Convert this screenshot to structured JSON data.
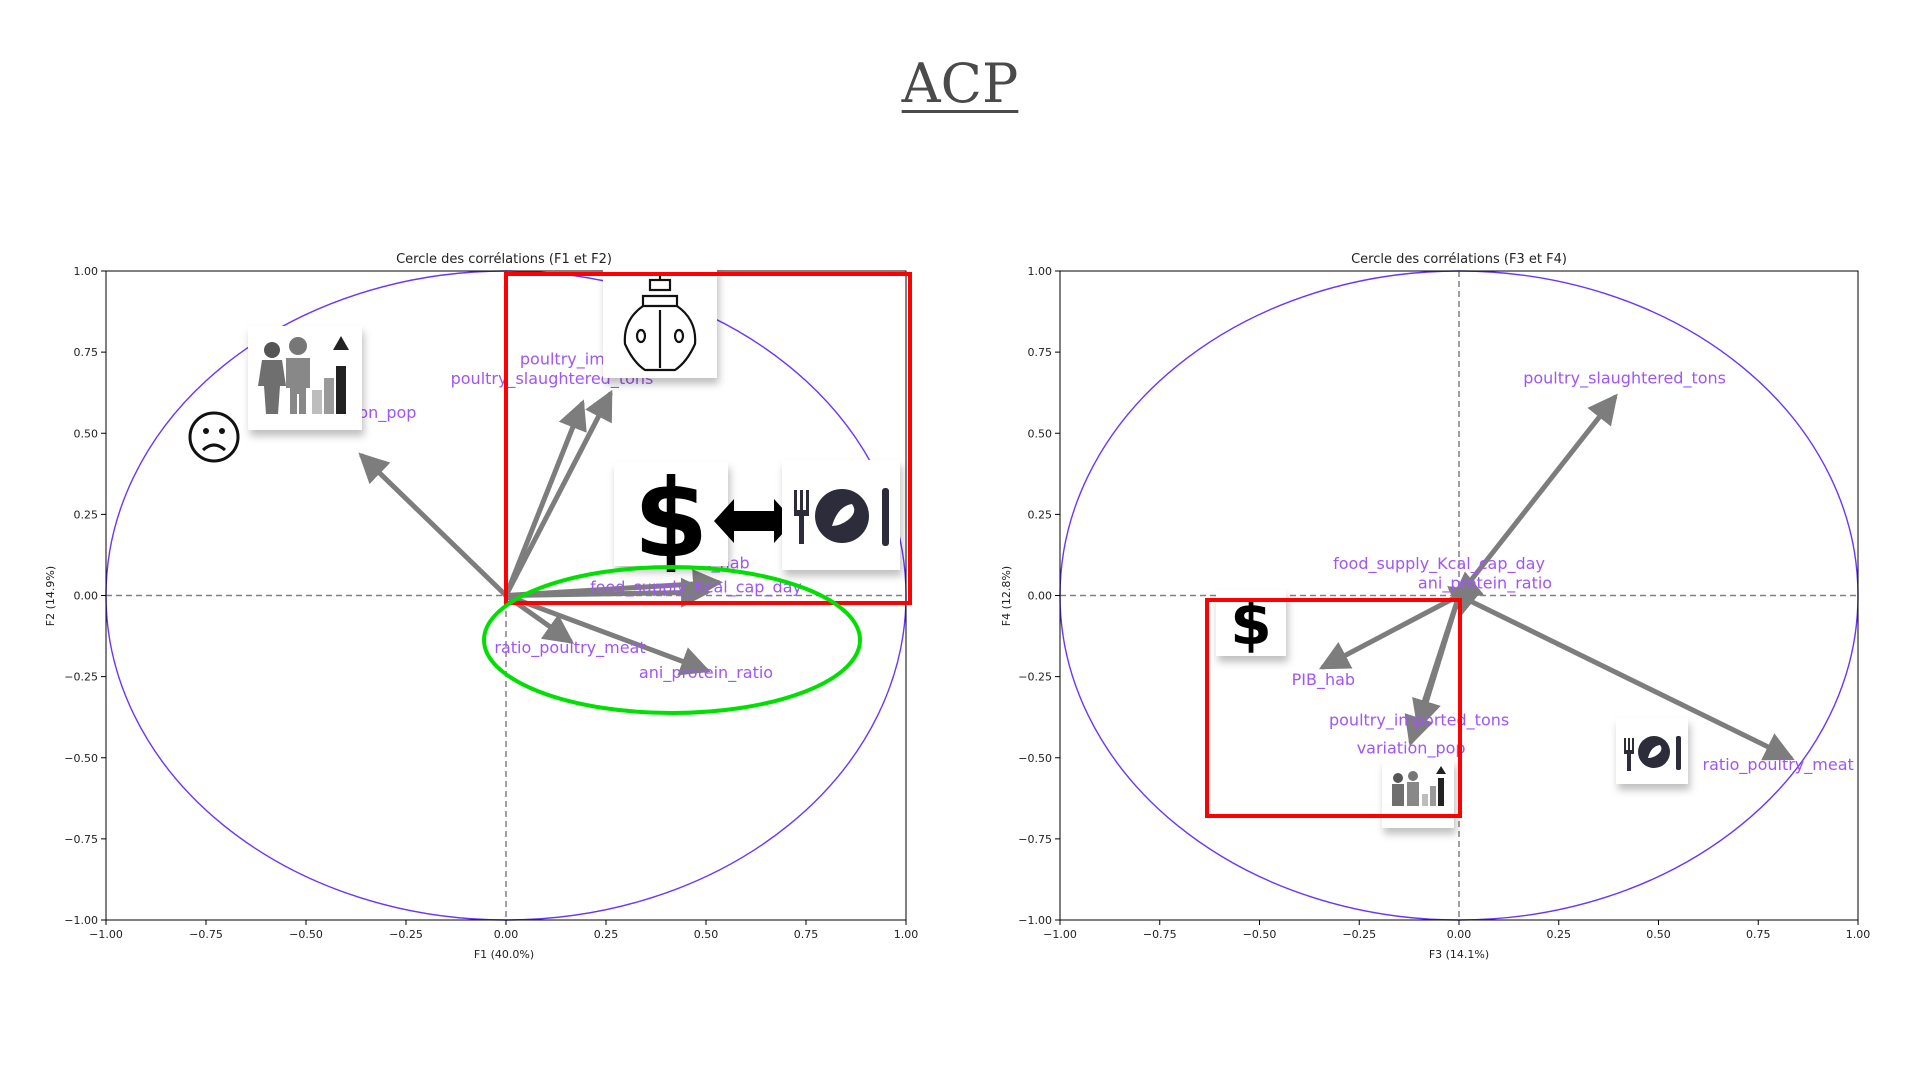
{
  "slide": {
    "title": "ACP"
  },
  "colors": {
    "circle": "#6a35ff",
    "arrow": "#7d7d7d",
    "label": "#a055f5",
    "highlight_red": "#ff0000",
    "highlight_green": "#00e000",
    "guide": "#808080"
  },
  "icons": {
    "left": [
      "population-growth-icon",
      "sad-face-icon",
      "cargo-ship-icon",
      "dollar-icon",
      "double-arrow-icon",
      "meal-plate-icon"
    ],
    "right": [
      "dollar-icon",
      "population-growth-icon",
      "meal-plate-icon"
    ]
  },
  "chart_data": [
    {
      "type": "scatter",
      "title": "Cercle des corrélations (F1 et F2)",
      "xlabel": "F1 (40.0%)",
      "ylabel": "F2 (14.9%)",
      "xlim": [
        -1.0,
        1.0
      ],
      "ylim": [
        -1.0,
        1.0
      ],
      "xticks": [
        "−1.00",
        "−0.75",
        "−0.50",
        "−0.25",
        "0.00",
        "0.25",
        "0.50",
        "0.75",
        "1.00"
      ],
      "yticks": [
        "−1.00",
        "−0.75",
        "−0.50",
        "−0.25",
        "0.00",
        "0.25",
        "0.50",
        "0.75",
        "1.00"
      ],
      "grid": false,
      "unit_circle": true,
      "vectors": [
        {
          "name": "variation_pop",
          "x": -0.36,
          "y": 0.43
        },
        {
          "name": "poultry_imported_tons",
          "x": 0.26,
          "y": 0.62
        },
        {
          "name": "poultry_slaughtered_tons",
          "x": 0.19,
          "y": 0.59
        },
        {
          "name": "PIB_hab",
          "x": 0.53,
          "y": 0.04
        },
        {
          "name": "food_supply_Kcal_cap_day",
          "x": 0.5,
          "y": 0.01
        },
        {
          "name": "ratio_poultry_meat",
          "x": 0.16,
          "y": -0.14
        },
        {
          "name": "ani_protein_ratio",
          "x": 0.5,
          "y": -0.23
        }
      ]
    },
    {
      "type": "scatter",
      "title": "Cercle des corrélations (F3 et F4)",
      "xlabel": "F3 (14.1%)",
      "ylabel": "F4 (12.8%)",
      "xlim": [
        -1.0,
        1.0
      ],
      "ylim": [
        -1.0,
        1.0
      ],
      "xticks": [
        "−1.00",
        "−0.75",
        "−0.50",
        "−0.25",
        "0.00",
        "0.25",
        "0.50",
        "0.75",
        "1.00"
      ],
      "yticks": [
        "−1.00",
        "−0.75",
        "−0.50",
        "−0.25",
        "0.00",
        "0.25",
        "0.50",
        "0.75",
        "1.00"
      ],
      "grid": false,
      "unit_circle": true,
      "vectors": [
        {
          "name": "poultry_slaughtered_tons",
          "x": 0.39,
          "y": 0.61
        },
        {
          "name": "food_supply_Kcal_cap_day",
          "x": -0.02,
          "y": 0.02
        },
        {
          "name": "ani_protein_ratio",
          "x": -0.01,
          "y": -0.01
        },
        {
          "name": "PIB_hab",
          "x": -0.34,
          "y": -0.22
        },
        {
          "name": "poultry_imported_tons",
          "x": -0.1,
          "y": -0.4
        },
        {
          "name": "variation_pop",
          "x": -0.12,
          "y": -0.45
        },
        {
          "name": "ratio_poultry_meat",
          "x": 0.83,
          "y": -0.5
        }
      ]
    }
  ]
}
